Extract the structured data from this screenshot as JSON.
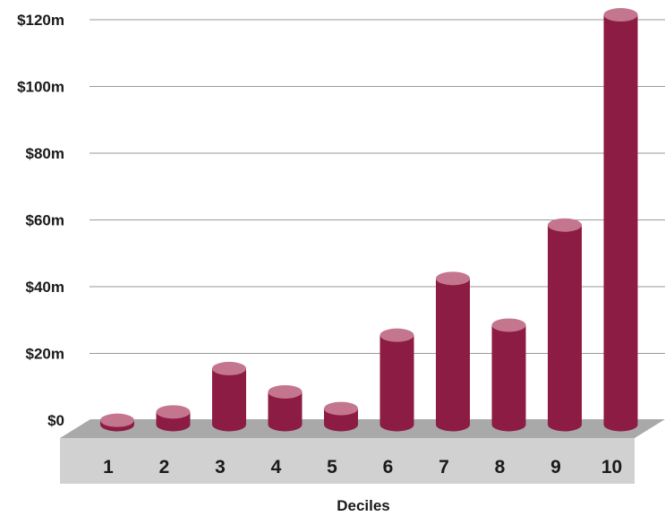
{
  "chart_data": {
    "type": "bar",
    "title": "",
    "xlabel": "Deciles",
    "ylabel": "",
    "categories": [
      "1",
      "2",
      "3",
      "4",
      "5",
      "6",
      "7",
      "8",
      "9",
      "10"
    ],
    "values": [
      0.5,
      3,
      16,
      9,
      4,
      26,
      43,
      29,
      59,
      122
    ],
    "ylim": [
      0,
      120
    ],
    "yticks": [
      0,
      20,
      40,
      60,
      80,
      100,
      120
    ],
    "ytick_labels": [
      "$0",
      "$20m",
      "$40m",
      "$60m",
      "$80m",
      "$100m",
      "$120m"
    ],
    "grid": true,
    "legend": "none",
    "colors": {
      "bar_body": "#8c1c43",
      "bar_top": "#c4768e",
      "floor_top": "#a9a9a9",
      "floor_front": "#d1d1d1",
      "gridline": "#9a9a9a"
    }
  }
}
